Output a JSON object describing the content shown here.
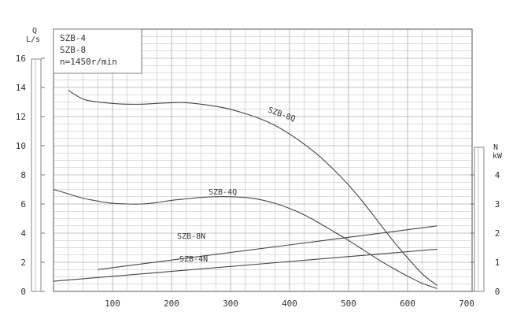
{
  "chart_data": {
    "type": "line",
    "legend": {
      "lines": [
        "SZB-4",
        "SZB-8",
        "n=1450r/min"
      ],
      "placement": "top-left"
    },
    "x_axis": {
      "ticks": [
        "100",
        "200",
        "300",
        "400",
        "500",
        "600",
        "700"
      ],
      "range": [
        0,
        700
      ]
    },
    "y_left": {
      "title_top": "Q",
      "title_bottom": "L/s",
      "ticks": [
        "0",
        "2",
        "4",
        "6",
        "8",
        "10",
        "12",
        "14",
        "16"
      ],
      "range": [
        0,
        16
      ]
    },
    "y_right": {
      "title_top": "N",
      "title_bottom": "kW",
      "ticks": [
        "0",
        "1",
        "2",
        "3",
        "4"
      ],
      "range": [
        0,
        4
      ]
    },
    "grid": true,
    "series": [
      {
        "name": "SZB-8Q",
        "axis": "left",
        "x": [
          25,
          50,
          75,
          100,
          125,
          150,
          175,
          200,
          225,
          250,
          275,
          300,
          325,
          350,
          375,
          400,
          425,
          450,
          475,
          500,
          525,
          550,
          575,
          600,
          625,
          650
        ],
        "y": [
          13.8,
          13.2,
          13.0,
          12.9,
          12.85,
          12.85,
          12.9,
          12.95,
          12.95,
          12.85,
          12.7,
          12.5,
          12.2,
          11.85,
          11.4,
          10.8,
          10.1,
          9.3,
          8.35,
          7.3,
          6.1,
          4.8,
          3.5,
          2.3,
          1.2,
          0.4
        ]
      },
      {
        "name": "SZB-4Q",
        "axis": "left",
        "x": [
          0,
          25,
          50,
          75,
          100,
          125,
          150,
          175,
          200,
          225,
          250,
          275,
          300,
          325,
          350,
          375,
          400,
          425,
          450,
          475,
          500,
          525,
          550,
          575,
          600,
          625,
          650
        ],
        "y": [
          7.0,
          6.7,
          6.4,
          6.2,
          6.05,
          6.0,
          6.0,
          6.1,
          6.25,
          6.35,
          6.45,
          6.5,
          6.5,
          6.45,
          6.3,
          6.05,
          5.7,
          5.25,
          4.7,
          4.1,
          3.5,
          2.85,
          2.2,
          1.6,
          1.05,
          0.55,
          0.2
        ]
      },
      {
        "name": "SZB-8N",
        "axis": "right",
        "x": [
          75,
          650
        ],
        "y": [
          0.75,
          2.25
        ]
      },
      {
        "name": "SZB-4N",
        "axis": "right",
        "x": [
          0,
          650
        ],
        "y": [
          0.35,
          1.45
        ]
      }
    ]
  }
}
